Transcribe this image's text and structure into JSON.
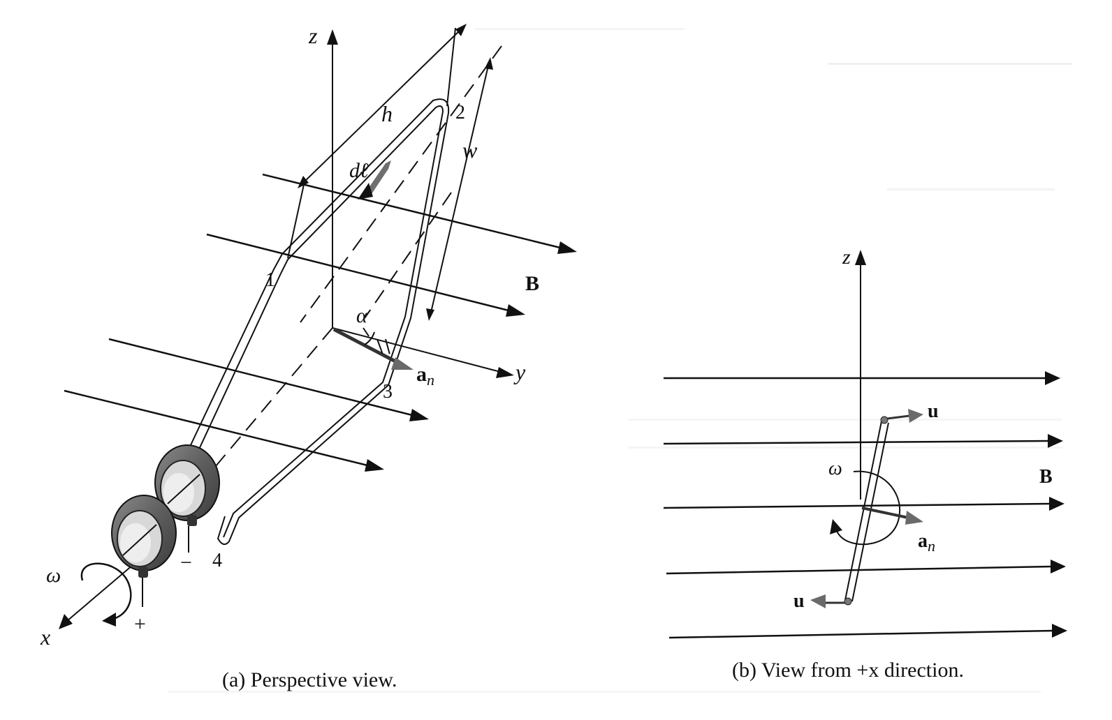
{
  "figure_a": {
    "axis_z": "z",
    "axis_y": "y",
    "axis_x": "x",
    "height_label": "h",
    "width_label": "w",
    "element_label": "dℓ",
    "angle_label": "α",
    "normal_label_main": "a",
    "normal_label_sub": "n",
    "field_label": "B",
    "omega_label": "ω",
    "corner_1": "1",
    "corner_2": "2",
    "corner_3": "3",
    "corner_4": "4",
    "terminal_plus": "+",
    "terminal_minus": "−",
    "caption": "(a)  Perspective view."
  },
  "figure_b": {
    "axis_z": "z",
    "velocity_label_top": "u",
    "velocity_label_bottom": "u",
    "omega_label": "ω",
    "normal_label_main": "a",
    "normal_label_sub": "n",
    "field_label": "B",
    "caption": "(b)  View from +x direction."
  }
}
